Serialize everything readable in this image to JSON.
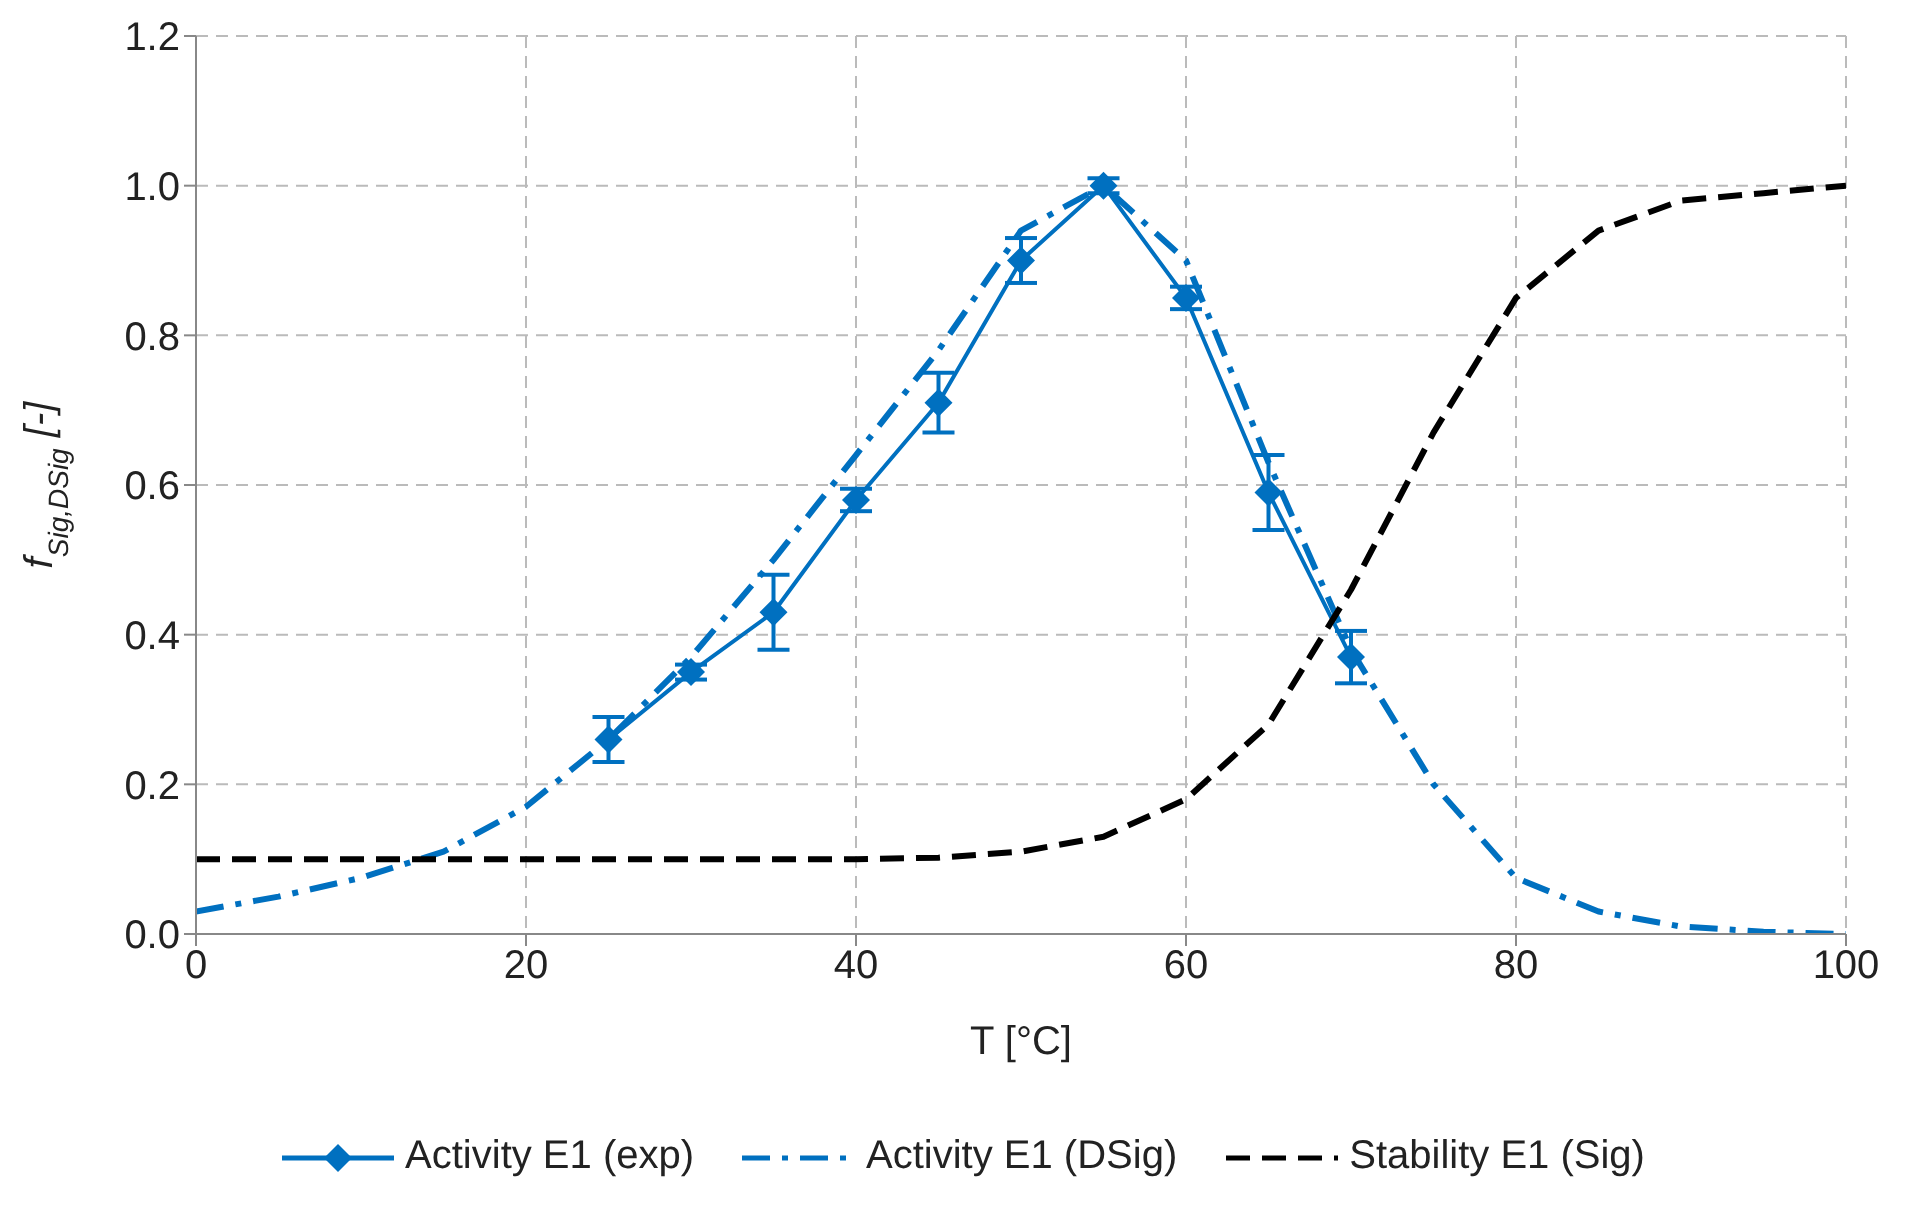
{
  "chart_data": {
    "type": "line",
    "xlabel": "T [°C]",
    "ylabel": "f$_{Sig,DSig}$ [-]",
    "xlim": [
      0,
      100
    ],
    "xticks": [
      0,
      20,
      40,
      60,
      80,
      100
    ],
    "ylim": [
      0,
      1.2
    ],
    "yticks": [
      {
        "value": 0,
        "label": "0.0"
      },
      {
        "value": 0.2,
        "label": "0.2"
      },
      {
        "value": 0.4,
        "label": "0.4"
      },
      {
        "value": 0.6,
        "label": "0.6"
      },
      {
        "value": 0.8,
        "label": "0.8"
      },
      {
        "value": 1,
        "label": "1.0"
      },
      {
        "value": 1.2,
        "label": "1.2"
      }
    ],
    "grid": true,
    "legend": "bottom",
    "series": [
      {
        "name": "Activity E1 (exp)",
        "color": "#0070c0",
        "marker": "diamond",
        "line_style": "solid",
        "x": [
          25,
          30,
          35,
          40,
          45,
          50,
          55,
          60,
          65,
          70
        ],
        "values": [
          0.26,
          0.35,
          0.43,
          0.58,
          0.71,
          0.9,
          1.0,
          0.85,
          0.59,
          0.37
        ],
        "errors": [
          0.03,
          0.01,
          0.05,
          0.015,
          0.04,
          0.03,
          0.01,
          0.015,
          0.05,
          0.035
        ]
      },
      {
        "name": "Activity E1 (DSig)",
        "color": "#0070c0",
        "marker": "none",
        "line_style": "dashdot",
        "x": [
          0,
          5,
          10,
          15,
          20,
          25,
          30,
          35,
          40,
          45,
          50,
          55,
          60,
          65,
          70,
          75,
          80,
          85,
          90,
          95,
          100
        ],
        "values": [
          0.03,
          0.05,
          0.075,
          0.11,
          0.17,
          0.26,
          0.37,
          0.5,
          0.64,
          0.78,
          0.94,
          1.0,
          0.9,
          0.63,
          0.38,
          0.2,
          0.075,
          0.03,
          0.01,
          0.003,
          0.0
        ]
      },
      {
        "name": "Stability E1 (Sig)",
        "color": "#000000",
        "marker": "none",
        "line_style": "dashed",
        "x": [
          0,
          10,
          20,
          30,
          40,
          45,
          50,
          55,
          60,
          65,
          70,
          75,
          80,
          85,
          90,
          95,
          100
        ],
        "values": [
          0.1,
          0.1,
          0.1,
          0.1,
          0.1,
          0.102,
          0.11,
          0.13,
          0.18,
          0.28,
          0.46,
          0.67,
          0.85,
          0.94,
          0.98,
          0.99,
          1.0
        ]
      }
    ]
  }
}
